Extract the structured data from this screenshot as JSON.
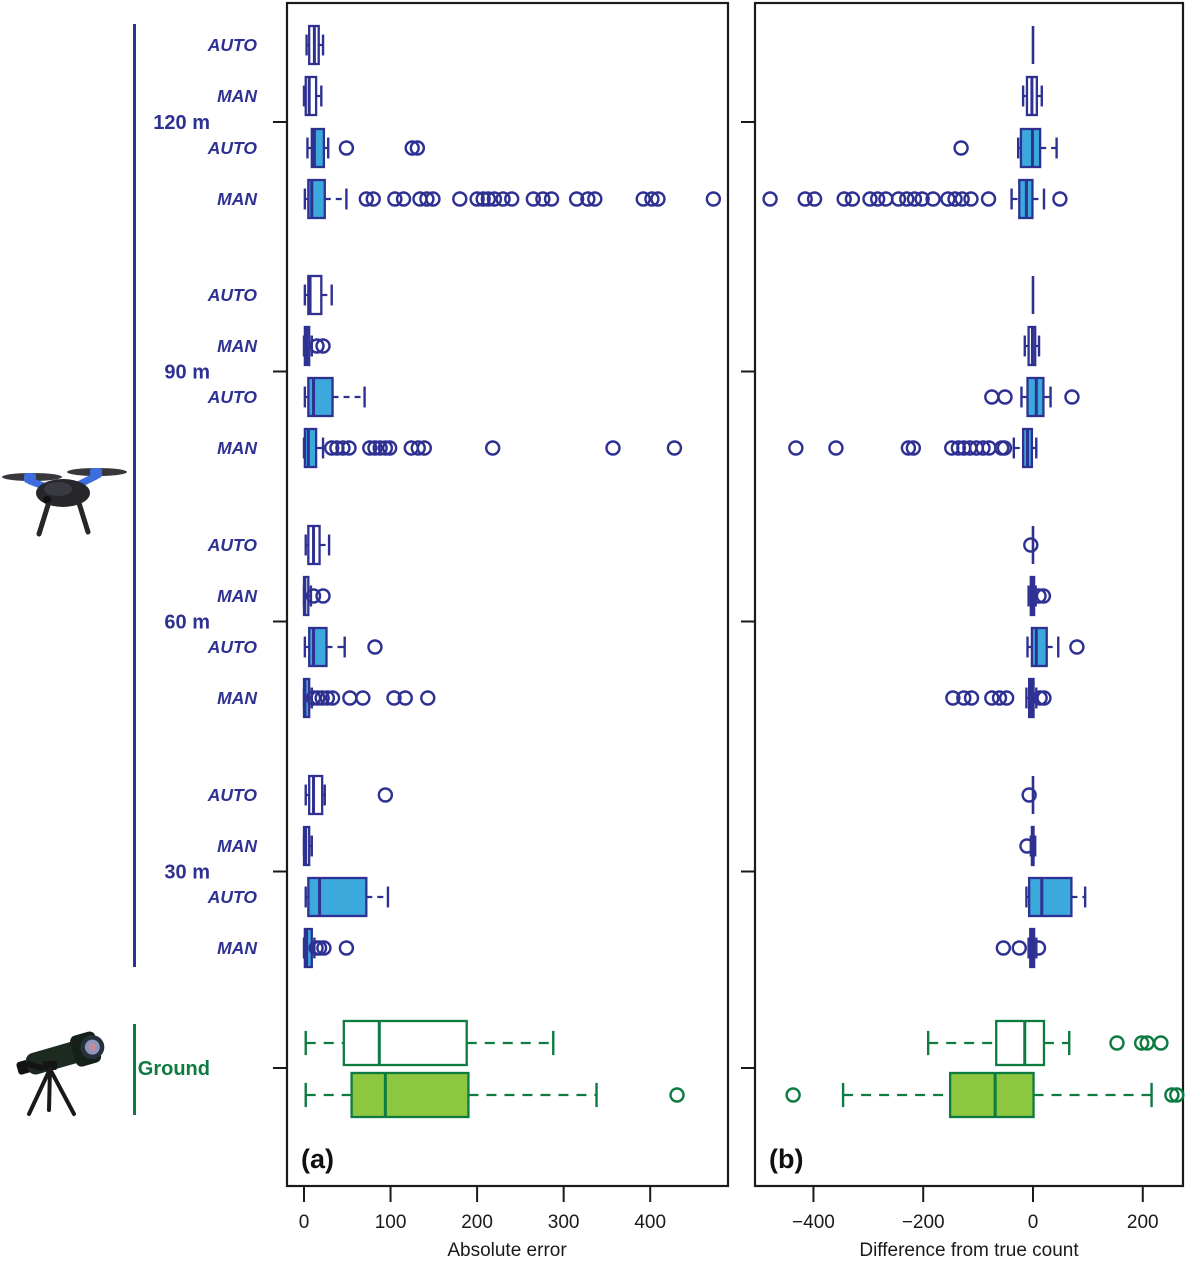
{
  "colors": {
    "navy": "#2E3192",
    "cyan_fill": "#3BA9DC",
    "green_dark": "#0E7B41",
    "green_fill": "#8DC63F",
    "frame": "#1a1a1a"
  },
  "sidebar": {
    "uav_icon": "quadcopter-drone",
    "ground_icon": "spotting-scope",
    "groups": [
      {
        "label": "120 m",
        "color": "navy"
      },
      {
        "label": "90 m",
        "color": "navy"
      },
      {
        "label": "60 m",
        "color": "navy"
      },
      {
        "label": "30 m",
        "color": "navy"
      },
      {
        "label": "Ground",
        "color": "green"
      }
    ]
  },
  "chart_data": [
    {
      "type": "boxplot",
      "panel": "a",
      "title": "(a)",
      "xlabel": "Absolute error",
      "x_ticks": [
        0,
        100,
        200,
        300,
        400
      ],
      "x_tick_labels": [
        "0",
        "100",
        "200",
        "300",
        "400"
      ],
      "xlim": [
        -20,
        490
      ],
      "orientation": "horizontal",
      "rows": [
        {
          "group": "120 m",
          "label": "AUTO",
          "style": "open-navy",
          "stats": [
            3,
            6,
            12,
            17,
            22
          ],
          "outliers": []
        },
        {
          "group": "120 m",
          "label": "MAN",
          "style": "open-navy",
          "stats": [
            0,
            2,
            6,
            14,
            20
          ],
          "outliers": []
        },
        {
          "group": "120 m",
          "label": "AUTO",
          "style": "cyan",
          "stats": [
            4,
            9,
            12,
            23,
            28
          ],
          "outliers": [
            49,
            125,
            131
          ]
        },
        {
          "group": "120 m",
          "label": "MAN",
          "style": "cyan",
          "stats": [
            1,
            5,
            9,
            24,
            49
          ],
          "outliers": [
            72,
            80,
            105,
            115,
            134,
            142,
            149,
            180,
            200,
            207,
            213,
            220,
            230,
            240,
            265,
            276,
            286,
            315,
            328,
            336,
            392,
            402,
            409,
            473
          ]
        },
        {
          "group": "90 m",
          "label": "AUTO",
          "style": "open-navy",
          "stats": [
            1,
            5,
            7,
            20,
            32
          ],
          "outliers": []
        },
        {
          "group": "90 m",
          "label": "MAN",
          "style": "open-navy",
          "stats": [
            0,
            1,
            3,
            6,
            9
          ],
          "outliers": [
            15,
            22
          ]
        },
        {
          "group": "90 m",
          "label": "AUTO",
          "style": "cyan",
          "stats": [
            1,
            5,
            11,
            33,
            70
          ],
          "outliers": []
        },
        {
          "group": "90 m",
          "label": "MAN",
          "style": "cyan",
          "stats": [
            0,
            1,
            5,
            14,
            22
          ],
          "outliers": [
            32,
            38,
            45,
            52,
            76,
            82,
            88,
            94,
            99,
            124,
            132,
            139,
            218,
            357,
            428
          ]
        },
        {
          "group": "60 m",
          "label": "AUTO",
          "style": "open-navy",
          "stats": [
            2,
            5,
            11,
            18,
            29
          ],
          "outliers": []
        },
        {
          "group": "60 m",
          "label": "MAN",
          "style": "open-navy",
          "stats": [
            0,
            0,
            1,
            5,
            8
          ],
          "outliers": [
            11,
            22
          ]
        },
        {
          "group": "60 m",
          "label": "AUTO",
          "style": "cyan",
          "stats": [
            1,
            6,
            11,
            26,
            47
          ],
          "outliers": [
            82
          ]
        },
        {
          "group": "60 m",
          "label": "MAN",
          "style": "cyan",
          "stats": [
            0,
            0,
            1,
            6,
            9
          ],
          "outliers": [
            11,
            16,
            21,
            27,
            33,
            53,
            68,
            104,
            117,
            143
          ]
        },
        {
          "group": "30 m",
          "label": "AUTO",
          "style": "open-navy",
          "stats": [
            2,
            6,
            11,
            21,
            24
          ],
          "outliers": [
            94
          ]
        },
        {
          "group": "30 m",
          "label": "MAN",
          "style": "open-navy",
          "stats": [
            0,
            0,
            2,
            6,
            9
          ],
          "outliers": []
        },
        {
          "group": "30 m",
          "label": "AUTO",
          "style": "cyan",
          "stats": [
            2,
            5,
            18,
            72,
            97
          ],
          "outliers": []
        },
        {
          "group": "30 m",
          "label": "MAN",
          "style": "cyan",
          "stats": [
            0,
            1,
            3,
            9,
            12
          ],
          "outliers": [
            14,
            18,
            23,
            49
          ]
        },
        {
          "group": "Ground",
          "label": "",
          "style": "open-green",
          "stats": [
            2,
            46,
            87,
            188,
            288
          ],
          "outliers": []
        },
        {
          "group": "Ground",
          "label": "",
          "style": "green",
          "stats": [
            2,
            55,
            94,
            190,
            338
          ],
          "outliers": [
            431
          ]
        }
      ]
    },
    {
      "type": "boxplot",
      "panel": "b",
      "title": "(b)",
      "xlabel": "Difference from true count",
      "x_ticks": [
        -400,
        -200,
        0,
        200
      ],
      "x_tick_labels": [
        "−400",
        "−200",
        "0",
        "200"
      ],
      "xlim": [
        -507,
        273
      ],
      "orientation": "horizontal",
      "rows": [
        {
          "group": "120 m",
          "label": "AUTO",
          "style": "open-navy",
          "stats": [
            0,
            0,
            0,
            0,
            0
          ],
          "outliers": []
        },
        {
          "group": "120 m",
          "label": "MAN",
          "style": "open-navy",
          "stats": [
            -18,
            -11,
            -2,
            7,
            16
          ],
          "outliers": []
        },
        {
          "group": "120 m",
          "label": "AUTO",
          "style": "cyan",
          "stats": [
            -27,
            -22,
            -1,
            13,
            43
          ],
          "outliers": [
            -131
          ]
        },
        {
          "group": "120 m",
          "label": "MAN",
          "style": "cyan",
          "stats": [
            -39,
            -25,
            -12,
            -1,
            20
          ],
          "outliers": [
            -479,
            -415,
            -398,
            -344,
            -329,
            -297,
            -283,
            -268,
            -245,
            -230,
            -216,
            -202,
            -182,
            -155,
            -142,
            -129,
            -113,
            -81,
            49
          ]
        },
        {
          "group": "90 m",
          "label": "AUTO",
          "style": "open-navy",
          "stats": [
            0,
            0,
            0,
            0,
            0
          ],
          "outliers": []
        },
        {
          "group": "90 m",
          "label": "MAN",
          "style": "open-navy",
          "stats": [
            -15,
            -8,
            -1,
            4,
            11
          ],
          "outliers": []
        },
        {
          "group": "90 m",
          "label": "AUTO",
          "style": "cyan",
          "stats": [
            -21,
            -10,
            6,
            19,
            32
          ],
          "outliers": [
            -75,
            -51,
            71
          ]
        },
        {
          "group": "90 m",
          "label": "MAN",
          "style": "cyan",
          "stats": [
            -35,
            -18,
            -10,
            -2,
            6
          ],
          "outliers": [
            -432,
            -359,
            -227,
            -218,
            -148,
            -136,
            -126,
            -115,
            -103,
            -91,
            -80,
            -57,
            -52
          ]
        },
        {
          "group": "60 m",
          "label": "AUTO",
          "style": "open-navy",
          "stats": [
            0,
            0,
            0,
            0,
            0
          ],
          "outliers": [
            -4
          ]
        },
        {
          "group": "60 m",
          "label": "MAN",
          "style": "open-navy",
          "stats": [
            -8,
            -4,
            0,
            2,
            5
          ],
          "outliers": [
            11,
            19
          ]
        },
        {
          "group": "60 m",
          "label": "AUTO",
          "style": "cyan",
          "stats": [
            -10,
            -2,
            6,
            25,
            46
          ],
          "outliers": [
            80
          ]
        },
        {
          "group": "60 m",
          "label": "MAN",
          "style": "cyan",
          "stats": [
            -12,
            -7,
            -3,
            1,
            6
          ],
          "outliers": [
            -146,
            -126,
            -112,
            -75,
            -61,
            -48,
            13,
            20
          ]
        },
        {
          "group": "30 m",
          "label": "AUTO",
          "style": "open-navy",
          "stats": [
            0,
            0,
            0,
            0,
            0
          ],
          "outliers": [
            -7
          ]
        },
        {
          "group": "30 m",
          "label": "MAN",
          "style": "open-navy",
          "stats": [
            -4,
            -2,
            0,
            1,
            4
          ],
          "outliers": [
            -11
          ]
        },
        {
          "group": "30 m",
          "label": "AUTO",
          "style": "cyan",
          "stats": [
            -12,
            -7,
            16,
            70,
            95
          ],
          "outliers": []
        },
        {
          "group": "30 m",
          "label": "MAN",
          "style": "cyan",
          "stats": [
            -8,
            -5,
            -1,
            2,
            6
          ],
          "outliers": [
            -54,
            -25,
            10
          ]
        },
        {
          "group": "Ground",
          "label": "",
          "style": "open-green",
          "stats": [
            -191,
            -67,
            -15,
            20,
            66
          ],
          "outliers": [
            153,
            198,
            208,
            233
          ]
        },
        {
          "group": "Ground",
          "label": "",
          "style": "green",
          "stats": [
            -346,
            -151,
            -69,
            1,
            216
          ],
          "outliers": [
            -437,
            253,
            262
          ]
        }
      ]
    }
  ]
}
